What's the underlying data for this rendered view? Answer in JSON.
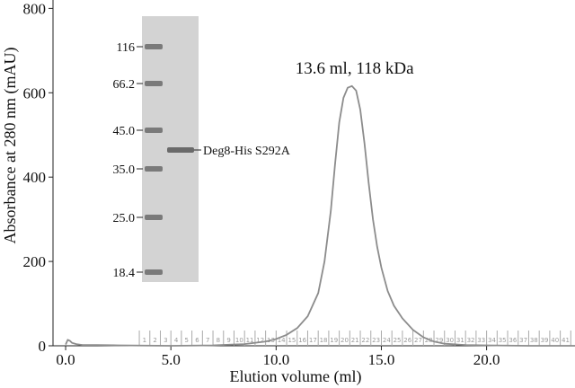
{
  "chart_data": {
    "type": "line",
    "xlabel": "Elution volume (ml)",
    "ylabel": "Absorbance at 280 nm (mAU)",
    "xlim": [
      -0.6,
      24.2
    ],
    "ylim": [
      0,
      820
    ],
    "xticks": [
      0.0,
      5.0,
      10.0,
      15.0,
      20.0
    ],
    "xtick_labels": [
      "0.0",
      "5.0",
      "10.0",
      "15.0",
      "20.0"
    ],
    "yticks": [
      0,
      200,
      400,
      600,
      800
    ],
    "ytick_labels": [
      "0",
      "200",
      "400",
      "600",
      "800"
    ],
    "grid": false,
    "series": [
      {
        "color": "#8c8c8c",
        "x": [
          0.0,
          0.1,
          0.2,
          0.3,
          0.5,
          0.8,
          1.5,
          2.5,
          5.0,
          7.0,
          8.5,
          9.5,
          10.0,
          10.5,
          11.0,
          11.5,
          12.0,
          12.3,
          12.6,
          12.8,
          13.0,
          13.2,
          13.4,
          13.6,
          13.8,
          14.0,
          14.2,
          14.4,
          14.6,
          14.8,
          15.0,
          15.3,
          15.6,
          16.0,
          16.5,
          17.0,
          17.5,
          18.0,
          19.0,
          20.0,
          22.0,
          24.2
        ],
        "y": [
          3,
          14,
          12,
          7,
          4,
          2,
          2,
          1,
          0,
          1,
          4,
          10,
          16,
          26,
          42,
          70,
          125,
          200,
          320,
          430,
          530,
          588,
          612,
          616,
          605,
          560,
          480,
          385,
          300,
          235,
          185,
          130,
          95,
          65,
          38,
          20,
          10,
          5,
          2,
          1,
          0,
          0
        ]
      }
    ],
    "annotations": [
      {
        "text": "13.6 ml, 118 kDa",
        "x": 13.6,
        "y": 616
      }
    ],
    "fraction_labels": [
      "1",
      "2",
      "3",
      "4",
      "5",
      "6",
      "7",
      "8",
      "9",
      "10",
      "11",
      "12",
      "13",
      "14",
      "15",
      "16",
      "17",
      "18",
      "19",
      "20",
      "21",
      "22",
      "23",
      "24",
      "25",
      "26",
      "27",
      "28",
      "29",
      "30",
      "31",
      "32",
      "33",
      "34",
      "35",
      "36",
      "37",
      "38",
      "39",
      "40",
      "41"
    ],
    "fraction_range": [
      3.5,
      24.0
    ],
    "inset_gel": {
      "marker_labels": [
        "116",
        "66.2",
        "45.0",
        "35.0",
        "25.0",
        "18.4"
      ],
      "band_label": "Deg8-His S292A",
      "background_color": "#d3d3d3",
      "band_color": "#6a6a6a"
    }
  }
}
